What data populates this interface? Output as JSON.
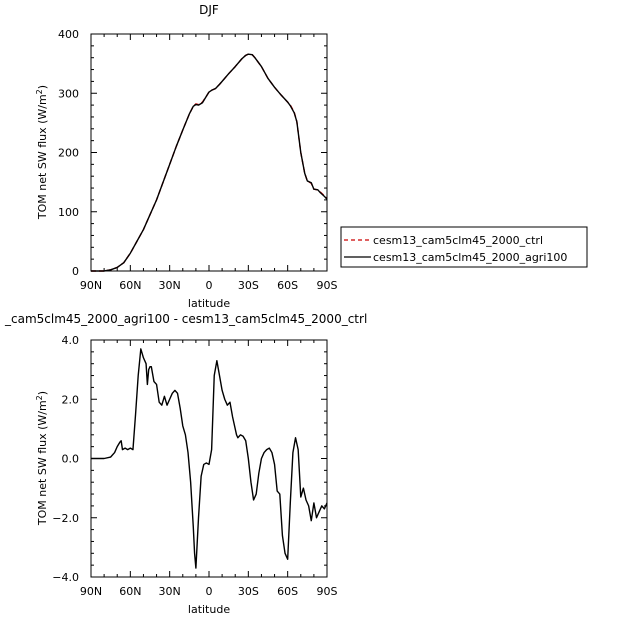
{
  "chart_data": [
    {
      "type": "line",
      "title": "DJF",
      "xlabel": "latitude",
      "ylabel_main": "TOM net SW flux (W/m",
      "ylabel_sup": "2",
      "ylabel_tail": ")",
      "xlim": [
        90,
        -90
      ],
      "ylim": [
        0,
        400
      ],
      "xticks": [
        90,
        60,
        30,
        0,
        -30,
        -60,
        -90
      ],
      "xtick_labels": [
        "90N",
        "60N",
        "30N",
        "0",
        "30S",
        "60S",
        "90S"
      ],
      "yticks": [
        0,
        100,
        200,
        300,
        400
      ],
      "ytick_labels": [
        "0",
        "100",
        "200",
        "300",
        "400"
      ],
      "legend_position": "right",
      "series": [
        {
          "name": "cesm13_cam5clm45_2000_ctrl",
          "color": "#cc0000",
          "dash": "dashed",
          "x": [
            90,
            85,
            80,
            75,
            70,
            65,
            60,
            55,
            50,
            45,
            40,
            35,
            30,
            25,
            20,
            15,
            12,
            10,
            8,
            5,
            2,
            0,
            -2,
            -5,
            -8,
            -10,
            -15,
            -20,
            -25,
            -28,
            -30,
            -33,
            -35,
            -40,
            -45,
            -50,
            -55,
            -60,
            -62,
            -65,
            -67,
            -70,
            -73,
            -75,
            -78,
            -80,
            -83,
            -85,
            -88,
            -90
          ],
          "y": [
            0,
            0,
            0,
            2,
            6,
            14,
            30,
            50,
            70,
            95,
            120,
            150,
            180,
            210,
            238,
            265,
            278,
            282,
            281,
            285,
            295,
            302,
            305,
            308,
            315,
            320,
            333,
            345,
            358,
            364,
            366,
            365,
            360,
            345,
            325,
            310,
            297,
            285,
            280,
            268,
            252,
            200,
            165,
            152,
            148,
            138,
            137,
            133,
            127,
            122
          ]
        },
        {
          "name": "cesm13_cam5clm45_2000_agri100",
          "color": "#000000",
          "dash": "solid",
          "x": [
            90,
            85,
            80,
            75,
            70,
            65,
            60,
            55,
            50,
            45,
            40,
            35,
            30,
            25,
            20,
            15,
            12,
            10,
            8,
            5,
            2,
            0,
            -2,
            -5,
            -8,
            -10,
            -15,
            -20,
            -25,
            -28,
            -30,
            -33,
            -35,
            -40,
            -45,
            -50,
            -55,
            -60,
            -62,
            -65,
            -67,
            -70,
            -73,
            -75,
            -78,
            -80,
            -83,
            -85,
            -88,
            -90
          ],
          "y": [
            0,
            0,
            0,
            2,
            6,
            14,
            30,
            50,
            70,
            95,
            120,
            150,
            180,
            210,
            238,
            265,
            278,
            281,
            280,
            284,
            295,
            302,
            305,
            308,
            315,
            320,
            333,
            345,
            358,
            364,
            366,
            365,
            360,
            345,
            325,
            310,
            297,
            285,
            279,
            267,
            252,
            200,
            165,
            152,
            149,
            138,
            137,
            132,
            126,
            121
          ]
        }
      ]
    },
    {
      "type": "line",
      "title": "_cam5clm45_2000_agri100 - cesm13_cam5clm45_2000_ctrl",
      "xlabel": "latitude",
      "ylabel_main": "TOM net SW flux (W/m",
      "ylabel_sup": "2",
      "ylabel_tail": ")",
      "xlim": [
        90,
        -90
      ],
      "ylim": [
        -4,
        4
      ],
      "xticks": [
        90,
        60,
        30,
        0,
        -30,
        -60,
        -90
      ],
      "xtick_labels": [
        "90N",
        "60N",
        "30N",
        "0",
        "30S",
        "60S",
        "90S"
      ],
      "yticks": [
        -4,
        -2,
        0,
        2,
        4
      ],
      "ytick_labels": [
        "−4.0",
        "−2.0",
        "0.0",
        "2.0",
        "4.0"
      ],
      "series": [
        {
          "name": "",
          "color": "#000000",
          "dash": "solid",
          "x": [
            90,
            80,
            75,
            72,
            70,
            68,
            67,
            66,
            64,
            62,
            60,
            58,
            56,
            54,
            52,
            50,
            48,
            47,
            46,
            45,
            44,
            42,
            40,
            38,
            36,
            34,
            32,
            30,
            28,
            26,
            24,
            22,
            20,
            18,
            16,
            14,
            12,
            11,
            10,
            8,
            6,
            4,
            2,
            0,
            -2,
            -4,
            -6,
            -8,
            -10,
            -12,
            -14,
            -16,
            -18,
            -20,
            -21,
            -22,
            -24,
            -26,
            -28,
            -30,
            -32,
            -34,
            -36,
            -38,
            -40,
            -42,
            -44,
            -46,
            -48,
            -50,
            -52,
            -54,
            -56,
            -58,
            -60,
            -62,
            -64,
            -66,
            -68,
            -70,
            -72,
            -74,
            -76,
            -78,
            -80,
            -82,
            -84,
            -86,
            -88,
            -90
          ],
          "y": [
            0,
            0,
            0.05,
            0.2,
            0.4,
            0.55,
            0.6,
            0.3,
            0.35,
            0.3,
            0.35,
            0.3,
            1.5,
            2.8,
            3.7,
            3.4,
            3.2,
            2.5,
            3.0,
            3.1,
            3.1,
            2.6,
            2.5,
            1.9,
            1.8,
            2.1,
            1.8,
            2.0,
            2.2,
            2.3,
            2.2,
            1.7,
            1.1,
            0.8,
            0.2,
            -0.8,
            -2.3,
            -3.2,
            -3.7,
            -2.0,
            -0.6,
            -0.2,
            -0.15,
            -0.2,
            0.3,
            2.8,
            3.3,
            2.8,
            2.3,
            2.0,
            1.8,
            1.9,
            1.4,
            1.0,
            0.8,
            0.7,
            0.8,
            0.75,
            0.6,
            0.0,
            -0.8,
            -1.4,
            -1.2,
            -0.5,
            0.0,
            0.2,
            0.3,
            0.35,
            0.2,
            -0.2,
            -1.1,
            -1.2,
            -2.6,
            -3.2,
            -3.4,
            -1.5,
            0.2,
            0.7,
            0.3,
            -1.3,
            -1.0,
            -1.4,
            -1.6,
            -2.1,
            -1.5,
            -2.0,
            -1.8,
            -1.6,
            -1.7,
            -1.5
          ]
        }
      ]
    }
  ]
}
